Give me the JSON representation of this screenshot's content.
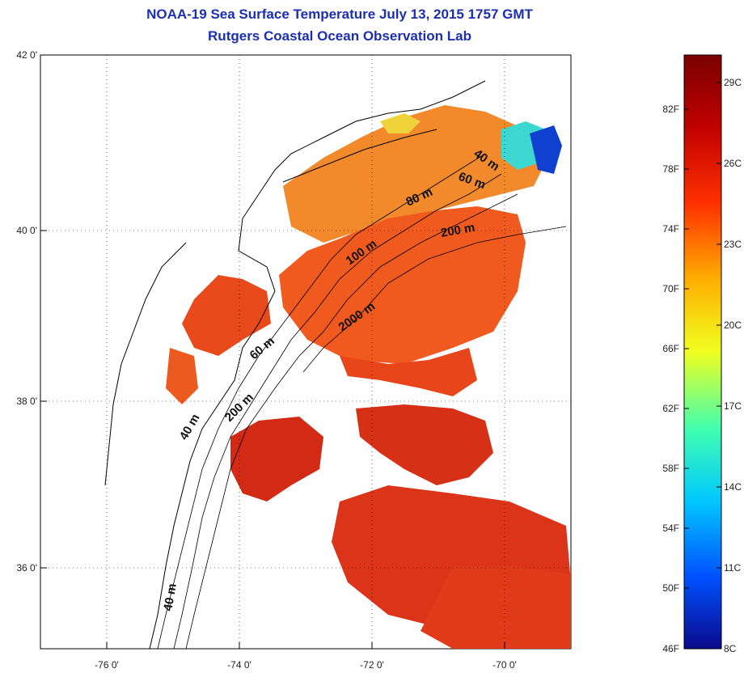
{
  "header": {
    "title": "NOAA-19 Sea Surface Temperature July 13, 2015 1757 GMT",
    "subtitle": "Rutgers Coastal Ocean Observation Lab"
  },
  "map": {
    "lat_labels": [
      "42 0'",
      "40 0'",
      "38 0'",
      "36 0'"
    ],
    "lon_labels": [
      "-76 0'",
      "-74 0'",
      "-72 0'",
      "-70 0'"
    ],
    "depth_labels": [
      "40 m",
      "60 m",
      "80 m",
      "200 m",
      "100 m",
      "2000 m",
      "60 m",
      "200 m",
      "40 m",
      "40 m"
    ]
  },
  "colorbar": {
    "fahrenheit_labels": [
      "82F",
      "78F",
      "74F",
      "70F",
      "66F",
      "62F",
      "58F",
      "54F",
      "50F",
      "46F"
    ],
    "celsius_labels": [
      "29C",
      "26C",
      "23C",
      "20C",
      "17C",
      "14C",
      "11C",
      "8C"
    ],
    "colors": [
      "#0a0a8c",
      "#0050ff",
      "#00c8ff",
      "#40ffb0",
      "#f0ff20",
      "#ffb000",
      "#ff3000",
      "#c00000",
      "#7a0000"
    ]
  }
}
